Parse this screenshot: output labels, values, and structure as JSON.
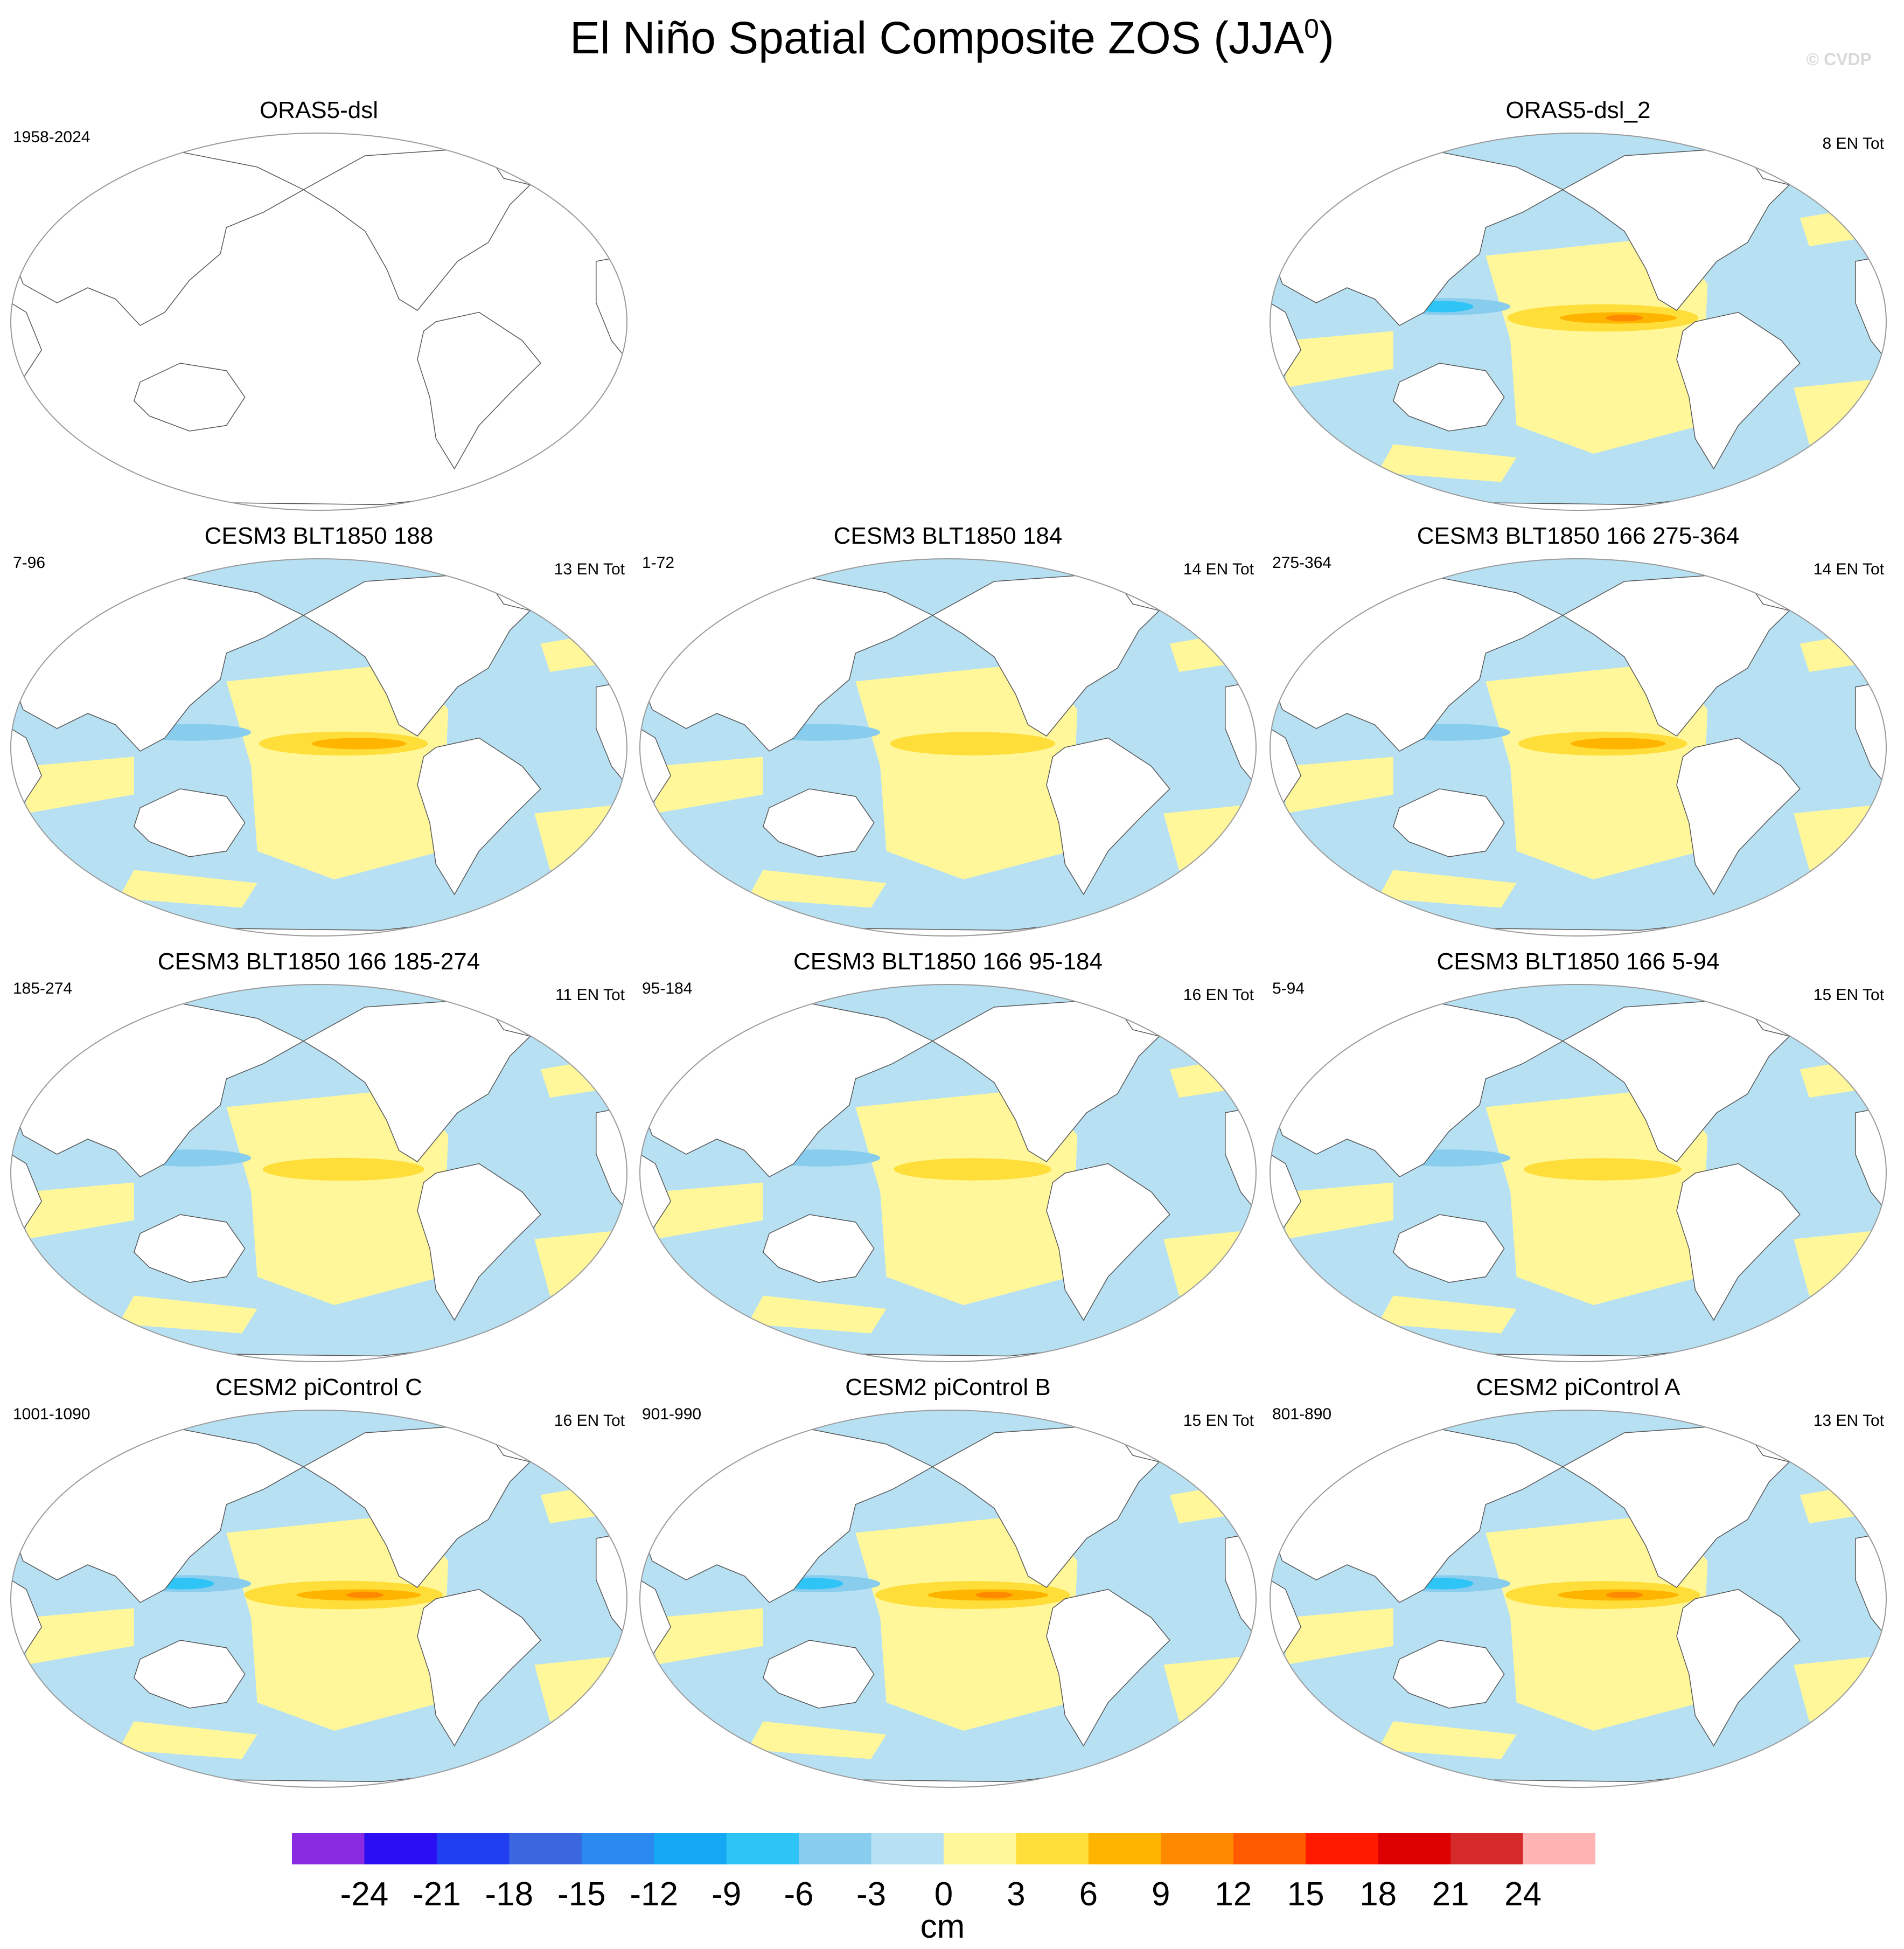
{
  "title_main": "El Niño Spatial Composite ZOS (JJA",
  "title_sup": "0",
  "title_close": ")",
  "credit": "© CVDP",
  "colors": {
    "land": "#ffffff",
    "outline": "#9a9a9a",
    "coast": "#555555"
  },
  "chart_data": {
    "type": "heatmap",
    "variable": "ZOS",
    "season": "JJA0",
    "units": "cm",
    "colorbar": {
      "levels": [
        "-24",
        "-21",
        "-18",
        "-15",
        "-12",
        "-9",
        "-6",
        "-3",
        "0",
        "3",
        "6",
        "9",
        "12",
        "15",
        "18",
        "21",
        "24"
      ],
      "colors": [
        "#8a2be2",
        "#2b0ff2",
        "#1f3ff0",
        "#3a66e0",
        "#2a8af0",
        "#14a8f5",
        "#2ec4f5",
        "#88ccee",
        "#b7e1f3",
        "#fff79a",
        "#ffde3a",
        "#ffb400",
        "#ff8a00",
        "#ff5a00",
        "#ff1a00",
        "#dc0000",
        "#d42a2a",
        "#ffb4b4"
      ]
    },
    "panels": [
      {
        "id": "p1",
        "title": "ORAS5-dsl",
        "years": "1958-2024",
        "count": "",
        "filled": false,
        "enso": 0
      },
      {
        "id": "p2",
        "title": "ORAS5-dsl_2",
        "years": "",
        "count": "8 EN Tot",
        "filled": true,
        "enso": 0.75
      },
      {
        "id": "p3",
        "title": "CESM3 BLT1850 188",
        "years": "7-96",
        "count": "13 EN Tot",
        "filled": true,
        "enso": 0.45
      },
      {
        "id": "p4",
        "title": "CESM3 BLT1850 184",
        "years": "1-72",
        "count": "14 EN Tot",
        "filled": true,
        "enso": 0.4
      },
      {
        "id": "p5",
        "title": "CESM3 BLT1850 166 275-364",
        "years": "275-364",
        "count": "14 EN Tot",
        "filled": true,
        "enso": 0.45
      },
      {
        "id": "p6",
        "title": "CESM3 BLT1850 166 185-274",
        "years": "185-274",
        "count": "11 EN Tot",
        "filled": true,
        "enso": 0.35
      },
      {
        "id": "p7",
        "title": "CESM3 BLT1850 166 95-184",
        "years": "95-184",
        "count": "16 EN Tot",
        "filled": true,
        "enso": 0.3
      },
      {
        "id": "p8",
        "title": "CESM3 BLT1850 166 5-94",
        "years": "5-94",
        "count": "15 EN Tot",
        "filled": true,
        "enso": 0.3
      },
      {
        "id": "p9",
        "title": "CESM2 piControl C",
        "years": "1001-1090",
        "count": "16 EN Tot",
        "filled": true,
        "enso": 0.85
      },
      {
        "id": "p10",
        "title": "CESM2 piControl B",
        "years": "901-990",
        "count": "15 EN Tot",
        "filled": true,
        "enso": 0.8
      },
      {
        "id": "p11",
        "title": "CESM2 piControl A",
        "years": "801-890",
        "count": "13 EN Tot",
        "filled": true,
        "enso": 0.8
      }
    ]
  }
}
